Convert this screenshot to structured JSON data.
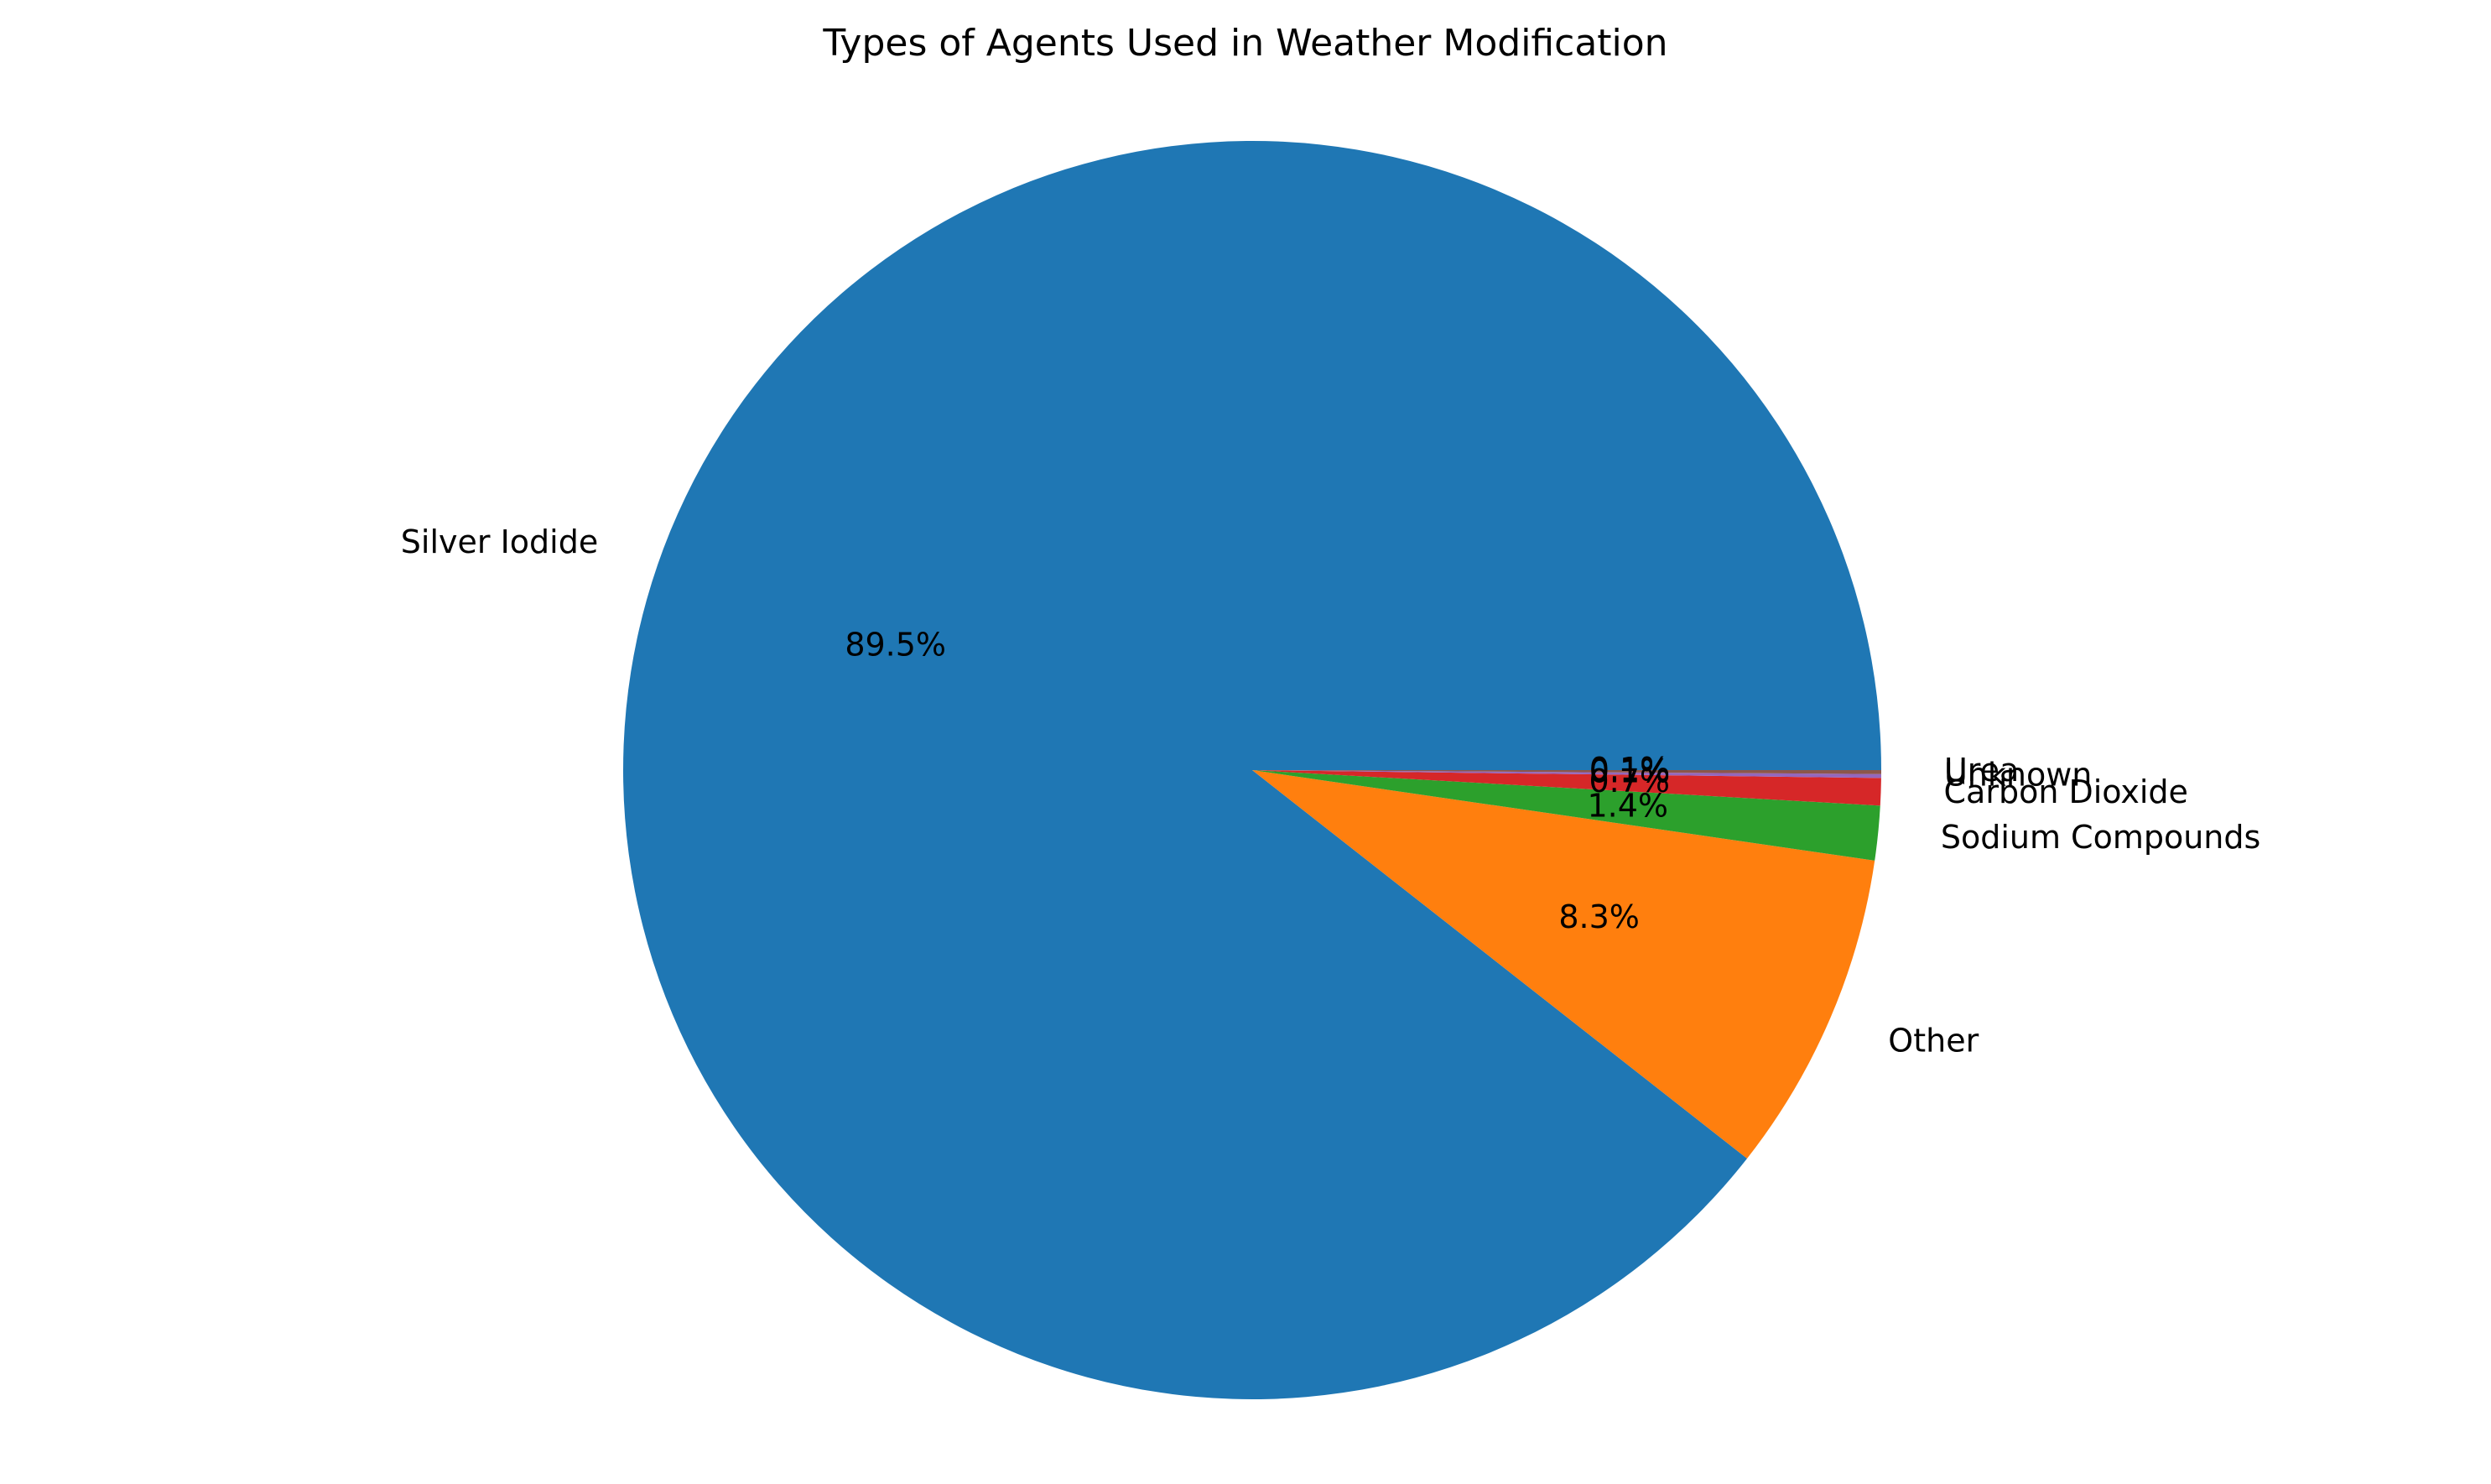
{
  "chart_data": {
    "type": "pie",
    "title": "Types of Agents Used in Weather Modification",
    "categories": [
      "Silver Iodide",
      "Other",
      "Sodium Compounds",
      "Carbon Dioxide",
      "Unknown",
      "Urea"
    ],
    "values": [
      89.5,
      8.3,
      1.4,
      0.7,
      0.1,
      0.1
    ],
    "percent_labels": [
      "89.5%",
      "8.3%",
      "1.4%",
      "0.7%",
      "0.1%",
      "0.1%"
    ],
    "colors": [
      "#1f77b4",
      "#ff7f0e",
      "#2ca02c",
      "#d62728",
      "#9467bd",
      "#8c564b"
    ],
    "start_angle_deg": 0,
    "direction": "counterclockwise",
    "legend": "none"
  }
}
